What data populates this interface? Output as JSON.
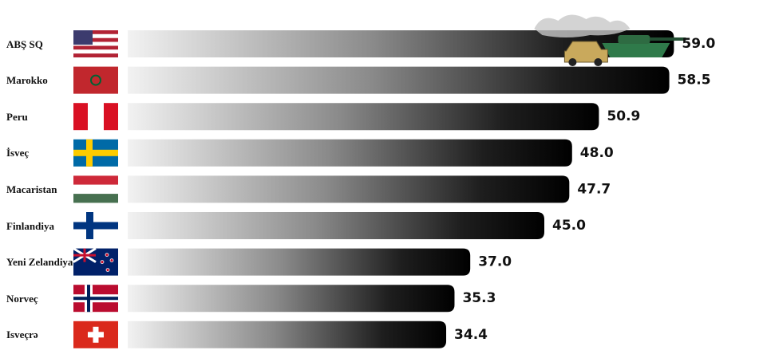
{
  "chart_data": {
    "type": "bar",
    "orientation": "horizontal",
    "categories": [
      "ABŞ SQ",
      "Marokko",
      "Peru",
      "İsveç",
      "Macaristan",
      "Finlandiya",
      "Yeni Zelandiya",
      "Norveç",
      "Isveçrə"
    ],
    "values": [
      59.0,
      58.5,
      50.9,
      48.0,
      47.7,
      45.0,
      37.0,
      35.3,
      34.4
    ],
    "value_labels": [
      "59.0",
      "58.5",
      "50.9",
      "48.0",
      "47.7",
      "45.0",
      "37.0",
      "35.3",
      "34.4"
    ]
  }
}
